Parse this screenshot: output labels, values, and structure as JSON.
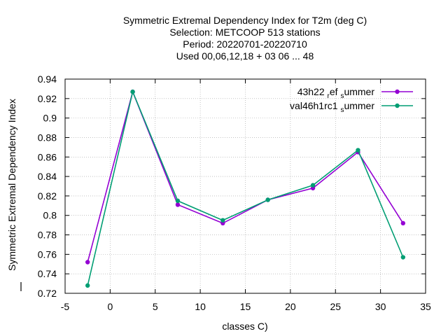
{
  "chart_data": {
    "type": "line",
    "title_lines": [
      "Symmetric Extremal Dependency Index  for T2m (deg C)",
      "Selection: METCOOP    513 stations",
      "Period: 20220701-20220710",
      "Used  00,06,12,18  + 03 06 ... 48"
    ],
    "xlabel": "classes C)",
    "ylabel": "Symmetric Extremal Dependency Index",
    "xlim": [
      -5,
      35
    ],
    "ylim": [
      0.72,
      0.94
    ],
    "xticks": [
      -5,
      0,
      5,
      10,
      15,
      20,
      25,
      30,
      35
    ],
    "yticks": [
      0.72,
      0.74,
      0.76,
      0.78,
      0.8,
      0.82,
      0.84,
      0.86,
      0.88,
      0.9,
      0.92,
      0.94
    ],
    "grid": true,
    "legend_position": "top-right",
    "x": [
      -2.5,
      2.5,
      7.5,
      12.5,
      17.5,
      22.5,
      27.5,
      32.5
    ],
    "series": [
      {
        "name": "43h22 ref summer",
        "name_parts": [
          {
            "text": "43h22 ",
            "sub": false
          },
          {
            "text": "r",
            "sub": true
          },
          {
            "text": "ef ",
            "sub": false
          },
          {
            "text": "s",
            "sub": true
          },
          {
            "text": "ummer",
            "sub": false
          }
        ],
        "color": "#9400d3",
        "values": [
          0.752,
          0.927,
          0.811,
          0.792,
          0.816,
          0.828,
          0.865,
          0.792
        ]
      },
      {
        "name": "val46h1rc1 summer",
        "name_parts": [
          {
            "text": "val46h1rc1 ",
            "sub": false
          },
          {
            "text": "s",
            "sub": true
          },
          {
            "text": "ummer",
            "sub": false
          }
        ],
        "color": "#009e73",
        "values": [
          0.728,
          0.927,
          0.815,
          0.795,
          0.816,
          0.831,
          0.867,
          0.757
        ]
      }
    ]
  }
}
